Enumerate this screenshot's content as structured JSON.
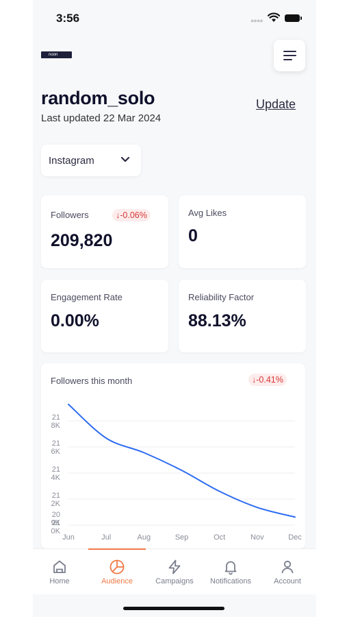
{
  "status_bar": {
    "time": "3:56"
  },
  "header": {
    "logo_text": "noon",
    "title": "random_solo",
    "last_updated": "Last updated 22 Mar 2024",
    "update_label": "Update"
  },
  "platform_select": {
    "value": "Instagram"
  },
  "stats": {
    "followers": {
      "label": "Followers",
      "value": "209,820",
      "change": "-0.06%"
    },
    "avg_likes": {
      "label": "Avg Likes",
      "value": "0"
    },
    "engagement_rate": {
      "label": "Engagement Rate",
      "value": "0.00%"
    },
    "reliability_factor": {
      "label": "Reliability Factor",
      "value": "88.13%"
    }
  },
  "chart_card": {
    "title": "Followers this month",
    "change": "-0.41%"
  },
  "chart_data": {
    "type": "line",
    "x": [
      "Jun",
      "Jul",
      "Aug",
      "Sep",
      "Oct",
      "Nov",
      "Dec"
    ],
    "y_tick_labels": [
      [
        "21",
        "8K"
      ],
      [
        "21",
        "6K"
      ],
      [
        "21",
        "4K"
      ],
      [
        "21",
        "2K"
      ],
      [
        "20",
        "9K"
      ],
      [
        "21",
        "0K"
      ]
    ],
    "series": [
      {
        "values": [
          209.95,
          209.74,
          209.65,
          209.54,
          209.41,
          209.31,
          209.25
        ]
      }
    ],
    "y_domain": [
      209.2,
      210.0
    ],
    "grid": true,
    "line_color": "#2d6cf0"
  },
  "colors": {
    "accent": "#f07a45",
    "negative": "#d93636",
    "negative_bg": "#fdecec",
    "line": "#2d6cf0"
  },
  "nav": {
    "items": [
      {
        "label": "Home",
        "icon": "home-icon",
        "active": false
      },
      {
        "label": "Audience",
        "icon": "pie-chart-icon",
        "active": true
      },
      {
        "label": "Campaigns",
        "icon": "lightning-icon",
        "active": false
      },
      {
        "label": "Notifications",
        "icon": "bell-icon",
        "active": false
      },
      {
        "label": "Account",
        "icon": "user-icon",
        "active": false
      }
    ]
  }
}
